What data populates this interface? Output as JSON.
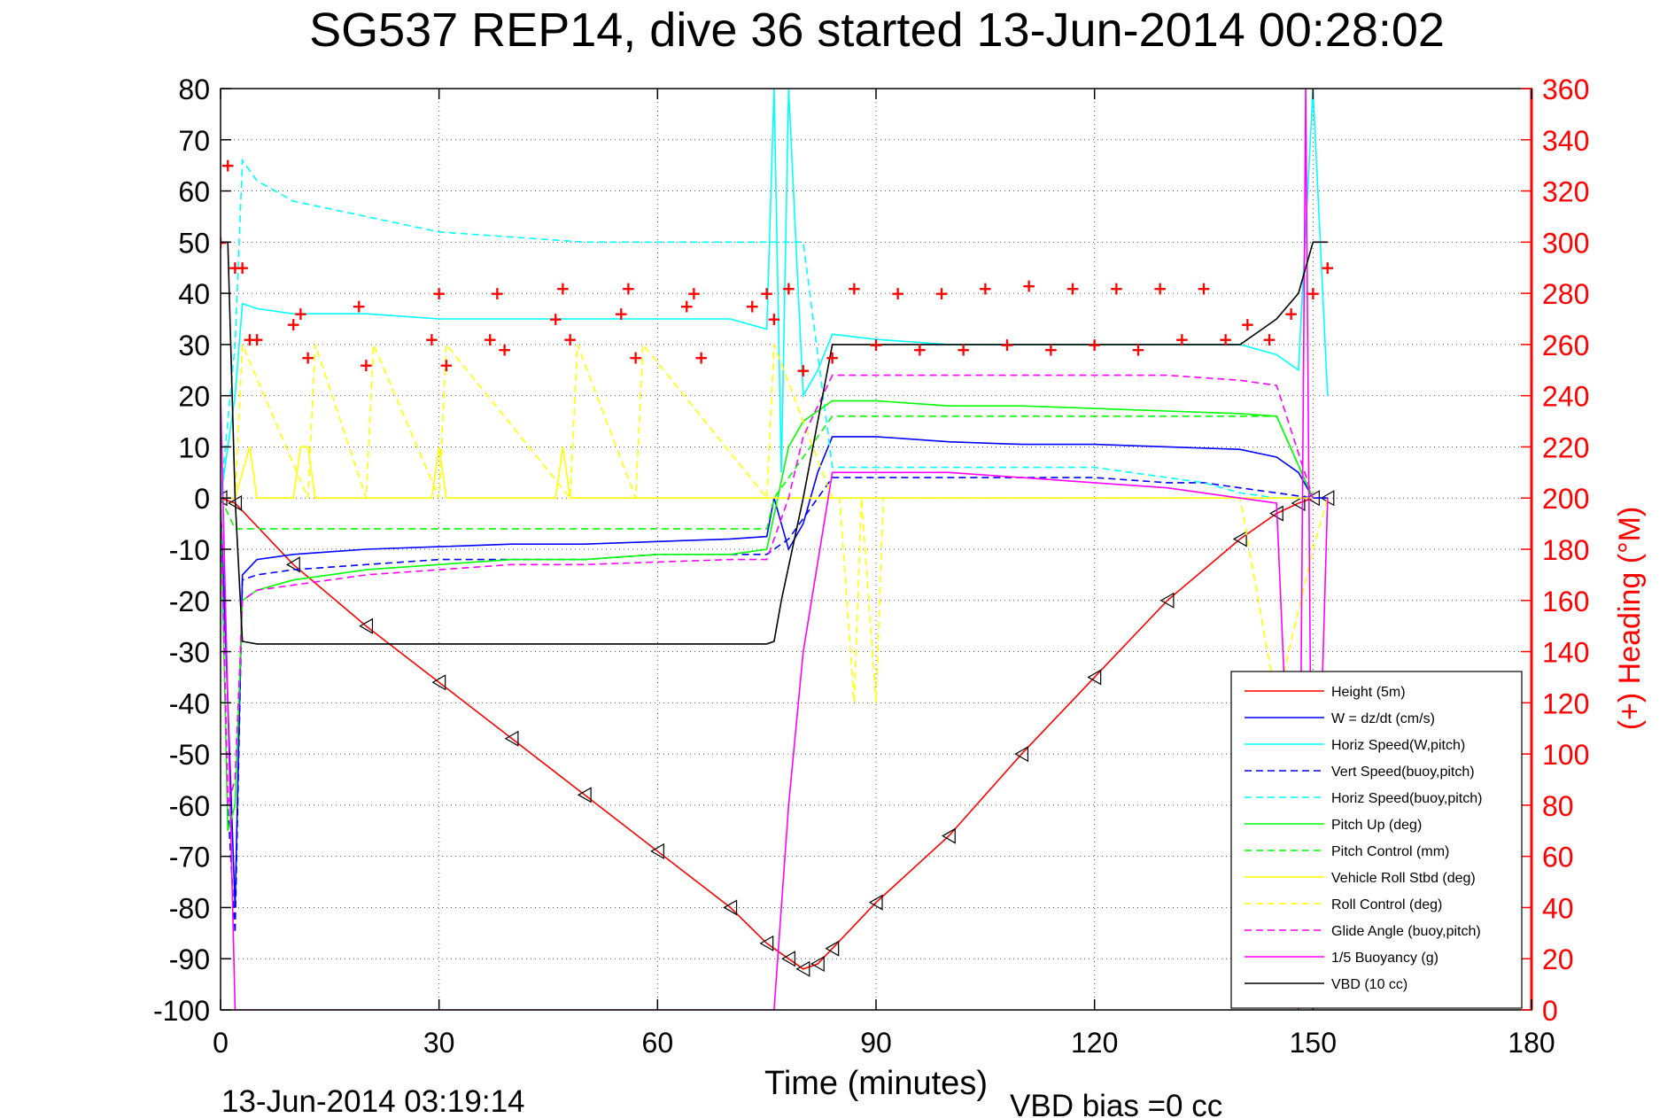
{
  "chart_data": {
    "type": "line",
    "title": "SG537 REP14, dive 36 started 13-Jun-2014 00:28:02",
    "xlabel": "Time (minutes)",
    "ylabel_right": "(+) Heading (°M)",
    "footer_left": "13-Jun-2014 03:19:14",
    "footer_right": "VBD bias =0 cc",
    "xlim": [
      0,
      180
    ],
    "ylim": [
      -100,
      80
    ],
    "ylim_right": [
      0,
      360
    ],
    "x_ticks": [
      "0",
      "30",
      "60",
      "90",
      "120",
      "150",
      "180"
    ],
    "y_ticks": [
      "80",
      "70",
      "60",
      "50",
      "40",
      "30",
      "20",
      "10",
      "0",
      "-10",
      "-20",
      "-30",
      "-40",
      "-50",
      "-60",
      "-70",
      "-80",
      "-90",
      "-100"
    ],
    "y_ticks_right": [
      "360",
      "340",
      "320",
      "300",
      "280",
      "260",
      "240",
      "220",
      "200",
      "180",
      "160",
      "140",
      "120",
      "100",
      "80",
      "60",
      "40",
      "20",
      "0"
    ],
    "grid": true,
    "legend_position": "bottom-right",
    "series": [
      {
        "name": "Height (5m)",
        "color": "#ff0000",
        "style": "solid",
        "x": [
          0,
          2,
          10,
          20,
          30,
          40,
          50,
          60,
          70,
          75,
          78,
          80,
          82,
          84,
          90,
          100,
          110,
          120,
          130,
          140,
          145,
          148,
          150,
          152
        ],
        "y": [
          0,
          -1,
          -13,
          -25,
          -36,
          -47,
          -58,
          -69,
          -80,
          -87,
          -90,
          -92,
          -91,
          -88,
          -79,
          -66,
          -50,
          -35,
          -20,
          -8,
          -3,
          -1,
          0,
          0
        ]
      },
      {
        "name": "W = dz/dt (cm/s)",
        "color": "#0000ff",
        "style": "solid",
        "x": [
          0,
          1,
          2,
          3,
          5,
          10,
          20,
          30,
          40,
          50,
          60,
          70,
          75,
          76,
          78,
          80,
          82,
          84,
          90,
          100,
          110,
          120,
          130,
          140,
          145,
          148,
          150,
          152
        ],
        "y": [
          0,
          -40,
          -80,
          -15,
          -12,
          -11,
          -10,
          -9.5,
          -9,
          -9,
          -8.5,
          -8,
          -7.5,
          0,
          -10,
          -5,
          5,
          12,
          12,
          11,
          10.5,
          10.5,
          10,
          9.5,
          8,
          5,
          0,
          0
        ]
      },
      {
        "name": "Horiz Speed(W,pitch)",
        "color": "#00ffff",
        "style": "solid",
        "x": [
          0,
          2,
          3,
          5,
          10,
          20,
          30,
          40,
          50,
          60,
          70,
          75,
          76,
          77,
          78,
          80,
          82,
          84,
          90,
          100,
          110,
          120,
          130,
          140,
          145,
          148,
          150,
          152
        ],
        "y": [
          0,
          20,
          38,
          37,
          36,
          36,
          35,
          35,
          35,
          35,
          35,
          33,
          80,
          5,
          80,
          20,
          25,
          32,
          31,
          30,
          30,
          30,
          30,
          30,
          28,
          25,
          80,
          20
        ]
      },
      {
        "name": "Vert Speed(buoy,pitch)",
        "color": "#0000ff",
        "style": "dashed",
        "x": [
          0,
          1,
          2,
          3,
          5,
          10,
          20,
          30,
          40,
          50,
          60,
          70,
          75,
          78,
          80,
          82,
          84,
          90,
          100,
          110,
          120,
          130,
          135,
          140,
          145,
          150
        ],
        "y": [
          0,
          -60,
          -85,
          -16,
          -15,
          -14,
          -13,
          -12,
          -12,
          -12,
          -11,
          -11,
          -11,
          -8,
          -4,
          0,
          4,
          4,
          4,
          4,
          4,
          3,
          3,
          2,
          1,
          0
        ]
      },
      {
        "name": "Horiz Speed(buoy,pitch)",
        "color": "#00ffff",
        "style": "dashed",
        "x": [
          0,
          2,
          3,
          5,
          10,
          20,
          30,
          40,
          50,
          60,
          70,
          75,
          80,
          84,
          90,
          100,
          110,
          120,
          130,
          135,
          140,
          145,
          150
        ],
        "y": [
          0,
          30,
          66,
          62,
          58,
          55,
          52,
          51,
          50,
          50,
          50,
          50,
          50,
          6,
          6,
          6,
          6,
          6,
          4,
          3,
          1,
          0,
          0
        ]
      },
      {
        "name": "Pitch Up (deg)",
        "color": "#00ff00",
        "style": "solid",
        "x": [
          0,
          1,
          2,
          3,
          5,
          10,
          20,
          30,
          40,
          50,
          60,
          70,
          75,
          78,
          80,
          84,
          90,
          100,
          110,
          120,
          130,
          140,
          145,
          150
        ],
        "y": [
          0,
          -65,
          -60,
          -20,
          -18,
          -16,
          -14,
          -13,
          -12,
          -12,
          -11,
          -11,
          -10,
          10,
          15,
          19,
          19,
          18,
          18,
          17.5,
          17,
          16.5,
          16,
          0
        ]
      },
      {
        "name": "Pitch Control (mm)",
        "color": "#00ff00",
        "style": "dashed",
        "x": [
          0,
          2,
          3,
          75,
          76,
          84,
          145,
          150
        ],
        "y": [
          0,
          -6,
          -6,
          -6,
          0,
          16,
          16,
          0
        ]
      },
      {
        "name": "Vehicle Roll Stbd (deg)",
        "color": "#ffff00",
        "style": "solid",
        "x": [
          0,
          2,
          4,
          5,
          10,
          11,
          12,
          13,
          29,
          30,
          31,
          46,
          47,
          48,
          75,
          76,
          80,
          84,
          90,
          100,
          110,
          120,
          130,
          140,
          150
        ],
        "y": [
          0,
          0,
          10,
          0,
          0,
          10,
          10,
          0,
          0,
          10,
          0,
          0,
          10,
          0,
          0,
          0,
          0,
          0,
          0,
          0,
          0,
          0,
          0,
          0,
          0
        ]
      },
      {
        "name": "Roll Control (deg)",
        "color": "#ffff00",
        "style": "dashed",
        "x": [
          0,
          2,
          3,
          12,
          13,
          20,
          21,
          30,
          31,
          48,
          49,
          57,
          58,
          75,
          76,
          84,
          85,
          87,
          88,
          90,
          91,
          140,
          145,
          150,
          152
        ],
        "y": [
          0,
          0,
          30,
          0,
          30,
          0,
          30,
          0,
          30,
          0,
          30,
          0,
          30,
          0,
          30,
          0,
          0,
          -40,
          0,
          -40,
          0,
          0,
          -40,
          -10,
          0
        ]
      },
      {
        "name": "Glide Angle (buoy,pitch)",
        "color": "#ff00ff",
        "style": "dashed",
        "x": [
          0,
          1,
          2,
          3,
          5,
          10,
          20,
          30,
          40,
          50,
          60,
          70,
          75,
          78,
          80,
          84,
          90,
          100,
          110,
          120,
          130,
          140,
          145,
          150
        ],
        "y": [
          0,
          -60,
          -55,
          -20,
          -18,
          -17,
          -15,
          -14,
          -13,
          -13,
          -12.5,
          -12,
          -12,
          0,
          12,
          24,
          24,
          24,
          24,
          24,
          24,
          23,
          22,
          0
        ]
      },
      {
        "name": "1/5 Buoyancy (g)",
        "color": "#ff00ff",
        "style": "solid",
        "x": [
          0,
          2,
          3,
          75,
          76,
          78,
          80,
          84,
          90,
          100,
          110,
          120,
          130,
          140,
          145,
          148,
          149,
          150,
          152
        ],
        "y": [
          20,
          -100,
          -100,
          -100,
          -100,
          -60,
          -30,
          5,
          5,
          5,
          4,
          3,
          2,
          0,
          -1,
          -100,
          80,
          -100,
          0
        ]
      },
      {
        "name": "VBD (10 cc)",
        "color": "#000000",
        "style": "solid",
        "x": [
          0,
          1,
          2,
          3,
          5,
          10,
          20,
          30,
          40,
          50,
          60,
          70,
          75,
          76,
          77,
          80,
          84,
          90,
          100,
          110,
          120,
          130,
          140,
          143,
          145,
          148,
          150,
          152
        ],
        "y": [
          50,
          50,
          0,
          -28,
          -28.5,
          -28.5,
          -28.5,
          -28.5,
          -28.5,
          -28.5,
          -28.5,
          -28.5,
          -28.5,
          -28,
          -20,
          0,
          30,
          30,
          30,
          30,
          30,
          30,
          30,
          33,
          35,
          40,
          50,
          50
        ]
      },
      {
        "name": "Heading",
        "color": "#ff0000",
        "style": "markers",
        "axis": "right",
        "x": [
          0,
          1,
          2,
          3,
          4,
          5,
          10,
          11,
          12,
          19,
          20,
          29,
          30,
          31,
          37,
          38,
          39,
          46,
          47,
          48,
          55,
          56,
          57,
          64,
          65,
          66,
          73,
          75,
          76,
          78,
          80,
          84,
          87,
          90,
          93,
          96,
          99,
          102,
          105,
          108,
          111,
          114,
          117,
          120,
          123,
          126,
          129,
          132,
          135,
          138,
          141,
          144,
          147,
          150,
          152
        ],
        "y": [
          300,
          330,
          290,
          290,
          262,
          262,
          268,
          272,
          255,
          275,
          252,
          262,
          280,
          252,
          262,
          280,
          258,
          270,
          282,
          262,
          272,
          282,
          255,
          275,
          280,
          255,
          275,
          280,
          270,
          282,
          250,
          255,
          282,
          260,
          280,
          258,
          280,
          258,
          282,
          260,
          283,
          258,
          282,
          260,
          282,
          258,
          282,
          262,
          282,
          262,
          268,
          262,
          272,
          280,
          290
        ]
      }
    ]
  }
}
